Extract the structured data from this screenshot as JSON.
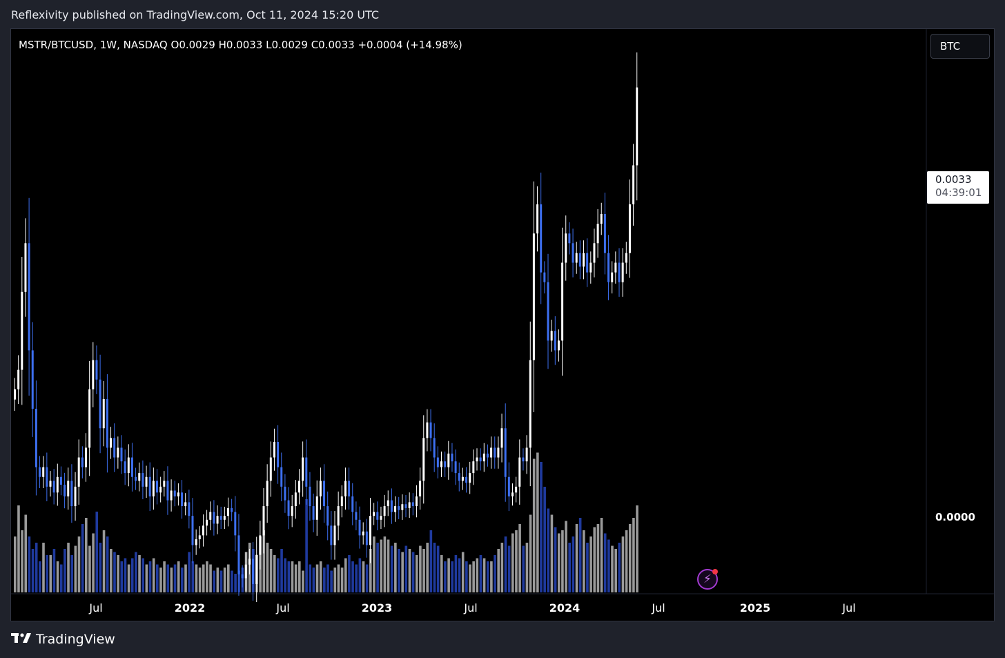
{
  "header": {
    "published_line": "Reflexivity published on TradingView.com, Oct 11, 2024 15:20 UTC"
  },
  "legend": {
    "symbol_line": "MSTR/BTCUSD, 1W, NASDAQ  O0.0029  H0.0033  L0.0029  C0.0033  +0.0004 (+14.98%)"
  },
  "currency_badge": "BTC",
  "price_label": {
    "price": "0.0033",
    "countdown": "04:39:01"
  },
  "volume_axis_label": "0.0000",
  "footer": {
    "brand": "TradingView",
    "logo_icon": "tradingview-logo-icon"
  },
  "colors": {
    "up_candle": "#ffffff",
    "down_candle": "#3d6ff0",
    "up_volume": "#9a9a9a",
    "down_volume": "#1f3a9e",
    "background": "#000000",
    "frame": "#1f222b"
  },
  "chart_data": {
    "type": "candlestick",
    "symbol": "MSTR/BTCUSD",
    "interval": "1W",
    "exchange": "NASDAQ",
    "x_axis": {
      "type": "time",
      "ticks": [
        "Jul",
        "2022",
        "Jul",
        "2023",
        "Jul",
        "2024",
        "Jul",
        "2025",
        "Jul"
      ],
      "range": [
        "2021-02-15",
        "2025-11-30"
      ]
    },
    "y_axis": {
      "range": [
        0.0007,
        0.0036
      ]
    },
    "last": {
      "open": 0.0029,
      "high": 0.0033,
      "low": 0.0029,
      "close": 0.0033,
      "change": 0.0004,
      "change_pct": 14.98
    },
    "series": [
      {
        "closes": [
          0.00175,
          0.00185,
          0.00225,
          0.0025,
          0.00195,
          0.00165,
          0.00135,
          0.0013,
          0.00135,
          0.00125,
          0.00128,
          0.00122,
          0.0013,
          0.00126,
          0.0012,
          0.00128,
          0.00115,
          0.00125,
          0.0014,
          0.00135,
          0.00145,
          0.00175,
          0.0019,
          0.0018,
          0.00155,
          0.0017,
          0.00145,
          0.0015,
          0.0014,
          0.00145,
          0.00138,
          0.00132,
          0.0014,
          0.0013,
          0.00128,
          0.00132,
          0.00125,
          0.0013,
          0.0012,
          0.00128,
          0.00122,
          0.00125,
          0.00128,
          0.00118,
          0.00123,
          0.0012,
          0.00122,
          0.00115,
          0.00117,
          0.0011,
          0.00095,
          0.00098,
          0.001,
          0.00105,
          0.00108,
          0.00112,
          0.00106,
          0.0011,
          0.00108,
          0.0011,
          0.00114,
          0.00112,
          0.001,
          0.0008,
          0.00078,
          0.00085,
          0.00088,
          0.00075,
          0.0009,
          0.001,
          0.00115,
          0.00128,
          0.0014,
          0.00148,
          0.00135,
          0.00125,
          0.00118,
          0.0011,
          0.00115,
          0.00122,
          0.00128,
          0.0014,
          0.00125,
          0.00115,
          0.00108,
          0.0012,
          0.00128,
          0.00115,
          0.00105,
          0.00095,
          0.00105,
          0.00115,
          0.0012,
          0.00128,
          0.0012,
          0.00112,
          0.00108,
          0.001,
          0.00102,
          0.00095,
          0.0011,
          0.00112,
          0.00108,
          0.0011,
          0.00115,
          0.00118,
          0.00112,
          0.00115,
          0.00113,
          0.00116,
          0.00114,
          0.00117,
          0.00115,
          0.0012,
          0.00128,
          0.0015,
          0.00158,
          0.0015,
          0.0014,
          0.00135,
          0.00138,
          0.00135,
          0.00142,
          0.00138,
          0.00132,
          0.00128,
          0.0013,
          0.00127,
          0.00132,
          0.00138,
          0.0014,
          0.00138,
          0.00142,
          0.0014,
          0.00145,
          0.0014,
          0.00145,
          0.00155,
          0.0013,
          0.0012,
          0.00122,
          0.00125,
          0.0014,
          0.00138,
          0.00145,
          0.0019,
          0.00255,
          0.0027,
          0.00235,
          0.0023,
          0.002,
          0.00205,
          0.00195,
          0.002,
          0.0024,
          0.00255,
          0.0025,
          0.0024,
          0.00245,
          0.00238,
          0.00245,
          0.00235,
          0.0024,
          0.0025,
          0.0026,
          0.00265,
          0.00245,
          0.0023,
          0.00235,
          0.0024,
          0.0023,
          0.0024,
          0.00245,
          0.0027,
          0.0029,
          0.0033
        ]
      }
    ],
    "volume": [
      0.18,
      0.28,
      0.2,
      0.25,
      0.18,
      0.14,
      0.16,
      0.1,
      0.16,
      0.12,
      0.12,
      0.14,
      0.1,
      0.09,
      0.14,
      0.16,
      0.12,
      0.15,
      0.18,
      0.22,
      0.24,
      0.15,
      0.19,
      0.26,
      0.16,
      0.2,
      0.18,
      0.14,
      0.13,
      0.12,
      0.1,
      0.11,
      0.09,
      0.11,
      0.13,
      0.12,
      0.11,
      0.09,
      0.1,
      0.11,
      0.09,
      0.08,
      0.1,
      0.09,
      0.08,
      0.09,
      0.1,
      0.08,
      0.09,
      0.13,
      0.1,
      0.09,
      0.08,
      0.09,
      0.1,
      0.09,
      0.07,
      0.08,
      0.07,
      0.08,
      0.09,
      0.07,
      0.06,
      0.07,
      0.08,
      0.13,
      0.16,
      0.14,
      0.12,
      0.18,
      0.2,
      0.16,
      0.14,
      0.12,
      0.11,
      0.14,
      0.11,
      0.1,
      0.1,
      0.09,
      0.1,
      0.07,
      0.3,
      0.09,
      0.08,
      0.09,
      0.1,
      0.08,
      0.09,
      0.07,
      0.08,
      0.09,
      0.08,
      0.11,
      0.12,
      0.1,
      0.09,
      0.11,
      0.1,
      0.09,
      0.14,
      0.18,
      0.16,
      0.17,
      0.18,
      0.17,
      0.15,
      0.16,
      0.14,
      0.13,
      0.15,
      0.14,
      0.13,
      0.12,
      0.15,
      0.14,
      0.16,
      0.2,
      0.16,
      0.15,
      0.12,
      0.1,
      0.11,
      0.1,
      0.12,
      0.11,
      0.13,
      0.1,
      0.09,
      0.1,
      0.11,
      0.12,
      0.11,
      0.1,
      0.1,
      0.12,
      0.14,
      0.16,
      0.18,
      0.15,
      0.19,
      0.2,
      0.22,
      0.15,
      0.16,
      0.25,
      0.43,
      0.45,
      0.42,
      0.34,
      0.27,
      0.25,
      0.21,
      0.19,
      0.2,
      0.23,
      0.16,
      0.18,
      0.22,
      0.24,
      0.2,
      0.16,
      0.18,
      0.21,
      0.22,
      0.24,
      0.19,
      0.17,
      0.15,
      0.14,
      0.16,
      0.18,
      0.2,
      0.22,
      0.24,
      0.28
    ]
  }
}
